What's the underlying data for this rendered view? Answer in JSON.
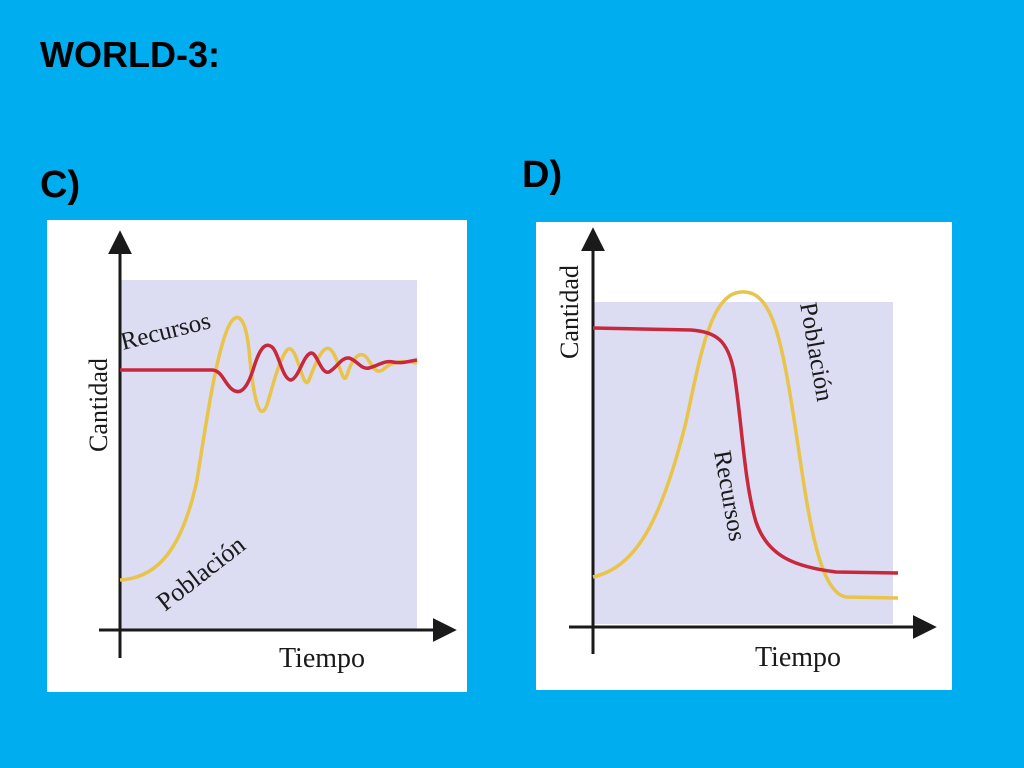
{
  "slide": {
    "title": "WORLD-3:"
  },
  "panels": [
    {
      "id": "C",
      "label": "C)",
      "ylabel": "Cantidad",
      "xlabel": "Tiempo",
      "curves": [
        {
          "name": "Recursos",
          "color": "#c8283c",
          "shape": "constant level with damped oscillation converging to equilibrium"
        },
        {
          "name": "Población",
          "color": "#e8c44a",
          "shape": "S-shaped growth with overshoot and damped oscillation around resource level"
        }
      ]
    },
    {
      "id": "D",
      "label": "D)",
      "ylabel": "Cantidad",
      "xlabel": "Tiempo",
      "curves": [
        {
          "name": "Población",
          "color": "#e8c44a",
          "shape": "rise to peak then collapse below initial level"
        },
        {
          "name": "Recursos",
          "color": "#c8283c",
          "shape": "high level then sharp decline to low plateau"
        }
      ]
    }
  ],
  "colors": {
    "background": "#00aeef",
    "panel": "#ffffff",
    "plot_fill": "#dcdcf2",
    "axis": "#1a1a1a"
  }
}
